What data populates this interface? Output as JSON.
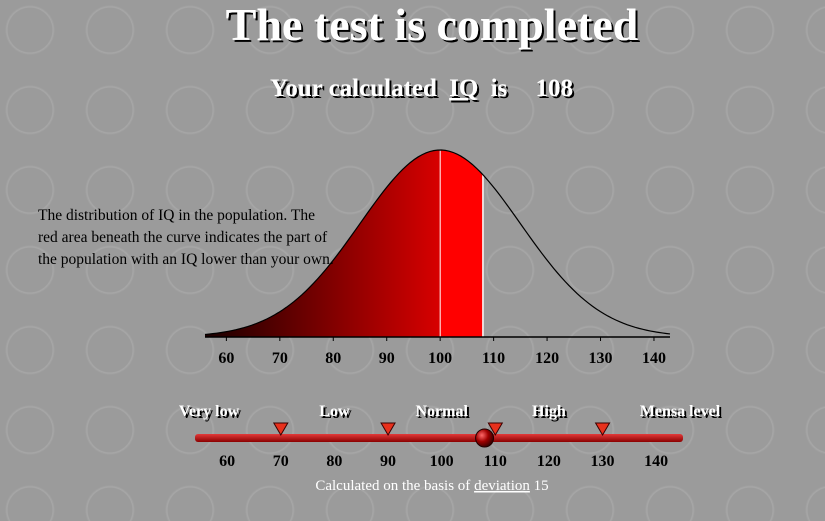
{
  "title": "The test is completed",
  "result": {
    "prefix": "Your calculated",
    "link": "IQ",
    "suffix": "is",
    "value": 108
  },
  "description": "The distribution of IQ in the population. The red area beneath the curve indicates the part of the population with an IQ lower than your own.",
  "distribution": {
    "mean": 100,
    "deviation": 15,
    "xlim": [
      56,
      143
    ],
    "xticks": [
      60,
      70,
      80,
      90,
      100,
      110,
      120,
      130,
      140
    ]
  },
  "scale": {
    "xlim": [
      54,
      145
    ],
    "xticks": [
      60,
      70,
      80,
      90,
      100,
      110,
      120,
      130,
      140
    ],
    "categories": [
      "Very low",
      "Low",
      "Normal",
      "High",
      "Mensa level"
    ],
    "boundaries": [
      70,
      90,
      110,
      130
    ]
  },
  "footer": {
    "prefix": "Calculated on the basis of",
    "link": "deviation"
  }
}
